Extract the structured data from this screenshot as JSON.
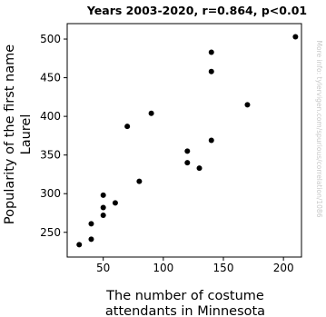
{
  "chart_data": {
    "type": "scatter",
    "title": "Years 2003-2020, r=0.864, p<0.01",
    "xlabel_lines": [
      "The number of costume",
      "attendants in Minnesota"
    ],
    "ylabel_lines": [
      "Popularity of the first name",
      "Laurel"
    ],
    "xlim": [
      20,
      215
    ],
    "ylim": [
      218,
      520
    ],
    "xticks": [
      50,
      100,
      150,
      200
    ],
    "yticks": [
      250,
      300,
      350,
      400,
      450,
      500
    ],
    "grid": false,
    "watermark": "More info: tylervigen.com/spurious/correlation/1086",
    "points": [
      {
        "x": 30,
        "y": 234
      },
      {
        "x": 40,
        "y": 241
      },
      {
        "x": 40,
        "y": 261
      },
      {
        "x": 50,
        "y": 272
      },
      {
        "x": 50,
        "y": 282
      },
      {
        "x": 50,
        "y": 298
      },
      {
        "x": 60,
        "y": 288
      },
      {
        "x": 70,
        "y": 387
      },
      {
        "x": 80,
        "y": 316
      },
      {
        "x": 90,
        "y": 404
      },
      {
        "x": 120,
        "y": 355
      },
      {
        "x": 120,
        "y": 340
      },
      {
        "x": 130,
        "y": 333
      },
      {
        "x": 140,
        "y": 483
      },
      {
        "x": 140,
        "y": 458
      },
      {
        "x": 140,
        "y": 369
      },
      {
        "x": 170,
        "y": 415
      },
      {
        "x": 210,
        "y": 503
      }
    ]
  }
}
